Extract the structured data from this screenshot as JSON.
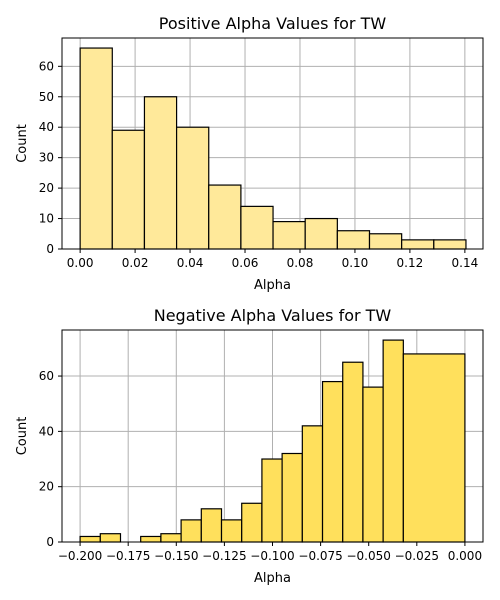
{
  "chart_data": [
    {
      "type": "bar",
      "title": "Positive Alpha Values for TW",
      "xlabel": "Alpha",
      "ylabel": "Count",
      "color": "#ffe99a",
      "grid": true,
      "xlim": [
        -0.0066,
        0.1466
      ],
      "ylim": [
        0,
        69.3
      ],
      "xticks": [
        0.0,
        0.02,
        0.04,
        0.06,
        0.08,
        0.1,
        0.12,
        0.14
      ],
      "xtick_labels": [
        "0.00",
        "0.02",
        "0.04",
        "0.06",
        "0.08",
        "0.10",
        "0.12",
        "0.14"
      ],
      "yticks": [
        0,
        10,
        20,
        30,
        40,
        50,
        60
      ],
      "ytick_labels": [
        "0",
        "10",
        "20",
        "30",
        "40",
        "50",
        "60"
      ],
      "bins": [
        {
          "start": 0.0,
          "end": 0.0117,
          "count": 66
        },
        {
          "start": 0.0117,
          "end": 0.0234,
          "count": 39
        },
        {
          "start": 0.0234,
          "end": 0.0351,
          "count": 50
        },
        {
          "start": 0.0351,
          "end": 0.0468,
          "count": 40
        },
        {
          "start": 0.0468,
          "end": 0.0585,
          "count": 21
        },
        {
          "start": 0.0585,
          "end": 0.0702,
          "count": 14
        },
        {
          "start": 0.0702,
          "end": 0.0819,
          "count": 9
        },
        {
          "start": 0.0819,
          "end": 0.0936,
          "count": 10
        },
        {
          "start": 0.0936,
          "end": 0.1053,
          "count": 6
        },
        {
          "start": 0.1053,
          "end": 0.117,
          "count": 5
        },
        {
          "start": 0.117,
          "end": 0.1287,
          "count": 3
        },
        {
          "start": 0.1287,
          "end": 0.1404,
          "count": 3
        }
      ]
    },
    {
      "type": "bar",
      "title": "Negative Alpha Values for TW",
      "xlabel": "Alpha",
      "ylabel": "Count",
      "color": "#ffe05c",
      "grid": true,
      "xlim": [
        -0.2094,
        0.0094
      ],
      "ylim": [
        0,
        76.65
      ],
      "xticks": [
        -0.2,
        -0.175,
        -0.15,
        -0.125,
        -0.1,
        -0.075,
        -0.05,
        -0.025,
        0.0
      ],
      "xtick_labels": [
        "−0.200",
        "−0.175",
        "−0.150",
        "−0.125",
        "−0.100",
        "−0.075",
        "−0.050",
        "−0.025",
        "0.000"
      ],
      "yticks": [
        0,
        20,
        40,
        60
      ],
      "ytick_labels": [
        "0",
        "20",
        "40",
        "60"
      ],
      "bins": [
        {
          "start": -0.2,
          "end": -0.1895,
          "count": 2
        },
        {
          "start": -0.1895,
          "end": -0.179,
          "count": 3
        },
        {
          "start": -0.179,
          "end": -0.1685,
          "count": 0
        },
        {
          "start": -0.1685,
          "end": -0.158,
          "count": 2
        },
        {
          "start": -0.158,
          "end": -0.1475,
          "count": 3
        },
        {
          "start": -0.1475,
          "end": -0.137,
          "count": 8
        },
        {
          "start": -0.137,
          "end": -0.1265,
          "count": 12
        },
        {
          "start": -0.1265,
          "end": -0.116,
          "count": 8
        },
        {
          "start": -0.116,
          "end": -0.1055,
          "count": 14
        },
        {
          "start": -0.1055,
          "end": -0.095,
          "count": 30
        },
        {
          "start": -0.095,
          "end": -0.0845,
          "count": 32
        },
        {
          "start": -0.0845,
          "end": -0.074,
          "count": 42
        },
        {
          "start": -0.074,
          "end": -0.0635,
          "count": 58
        },
        {
          "start": -0.0635,
          "end": -0.053,
          "count": 65
        },
        {
          "start": -0.053,
          "end": -0.0425,
          "count": 56
        },
        {
          "start": -0.0425,
          "end": -0.032,
          "count": 73
        },
        {
          "start": -0.032,
          "end": 0.0,
          "count": 68
        }
      ]
    }
  ]
}
